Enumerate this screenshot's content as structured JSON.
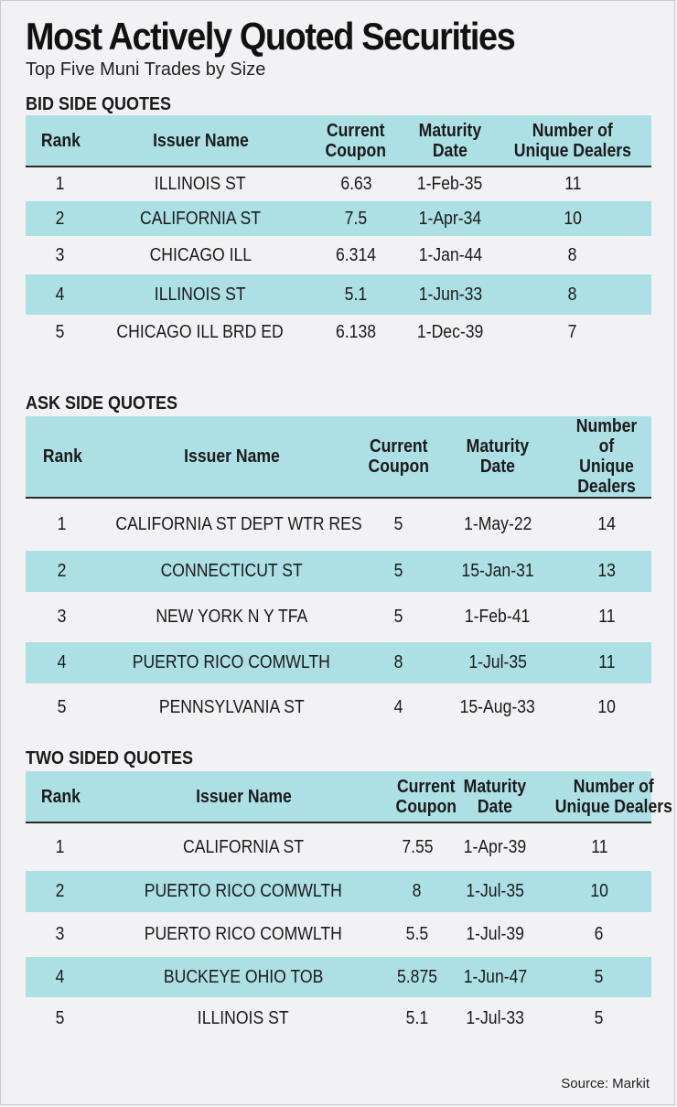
{
  "title": "Most Actively Quoted Securities",
  "subtitle": "Top Five Muni Trades by Size",
  "columns": {
    "rank": "Rank",
    "issuer": "Issuer Name",
    "coupon_l1": "Current",
    "coupon_l2": "Coupon",
    "maturity_l1": "Maturity",
    "maturity_l2": "Date",
    "dealers_l1": "Number of",
    "dealers_l2": "Unique Dealers"
  },
  "sections": [
    {
      "title": "BID SIDE QUOTES",
      "rows": [
        {
          "rank": "1",
          "issuer": "ILLINOIS ST",
          "coupon": "6.63",
          "maturity": "1-Feb-35",
          "dealers": "11"
        },
        {
          "rank": "2",
          "issuer": "CALIFORNIA ST",
          "coupon": "7.5",
          "maturity": "1-Apr-34",
          "dealers": "10"
        },
        {
          "rank": "3",
          "issuer": "CHICAGO ILL",
          "coupon": "6.314",
          "maturity": "1-Jan-44",
          "dealers": "8"
        },
        {
          "rank": "4",
          "issuer": "ILLINOIS ST",
          "coupon": "5.1",
          "maturity": "1-Jun-33",
          "dealers": "8"
        },
        {
          "rank": "5",
          "issuer": "CHICAGO ILL BRD ED",
          "coupon": "6.138",
          "maturity": "1-Dec-39",
          "dealers": "7"
        }
      ]
    },
    {
      "title": "ASK SIDE QUOTES",
      "rows": [
        {
          "rank": "1",
          "issuer": "CALIFORNIA ST DEPT WTR RES",
          "coupon": "5",
          "maturity": "1-May-22",
          "dealers": "14"
        },
        {
          "rank": "2",
          "issuer": "CONNECTICUT ST",
          "coupon": "5",
          "maturity": "15-Jan-31",
          "dealers": "13"
        },
        {
          "rank": "3",
          "issuer": "NEW YORK N Y TFA",
          "coupon": "5",
          "maturity": "1-Feb-41",
          "dealers": "11"
        },
        {
          "rank": "4",
          "issuer": "PUERTO RICO COMWLTH",
          "coupon": "8",
          "maturity": "1-Jul-35",
          "dealers": "11"
        },
        {
          "rank": "5",
          "issuer": "PENNSYLVANIA ST",
          "coupon": "4",
          "maturity": "15-Aug-33",
          "dealers": "10"
        }
      ]
    },
    {
      "title": "TWO SIDED QUOTES",
      "rows": [
        {
          "rank": "1",
          "issuer": "CALIFORNIA ST",
          "coupon": "7.55",
          "maturity": "1-Apr-39",
          "dealers": "11"
        },
        {
          "rank": "2",
          "issuer": "PUERTO RICO COMWLTH",
          "coupon": "8",
          "maturity": "1-Jul-35",
          "dealers": "10"
        },
        {
          "rank": "3",
          "issuer": "PUERTO RICO COMWLTH",
          "coupon": "5.5",
          "maturity": "1-Jul-39",
          "dealers": "6"
        },
        {
          "rank": "4",
          "issuer": "BUCKEYE OHIO TOB",
          "coupon": "5.875",
          "maturity": "1-Jun-47",
          "dealers": "5"
        },
        {
          "rank": "5",
          "issuer": "ILLINOIS ST",
          "coupon": "5.1",
          "maturity": "1-Jul-33",
          "dealers": "5"
        }
      ]
    }
  ],
  "source": "Source: Markit",
  "colors": {
    "band": "#ade0e5",
    "background": "#f2f2f4",
    "text": "#1a1a1a"
  }
}
